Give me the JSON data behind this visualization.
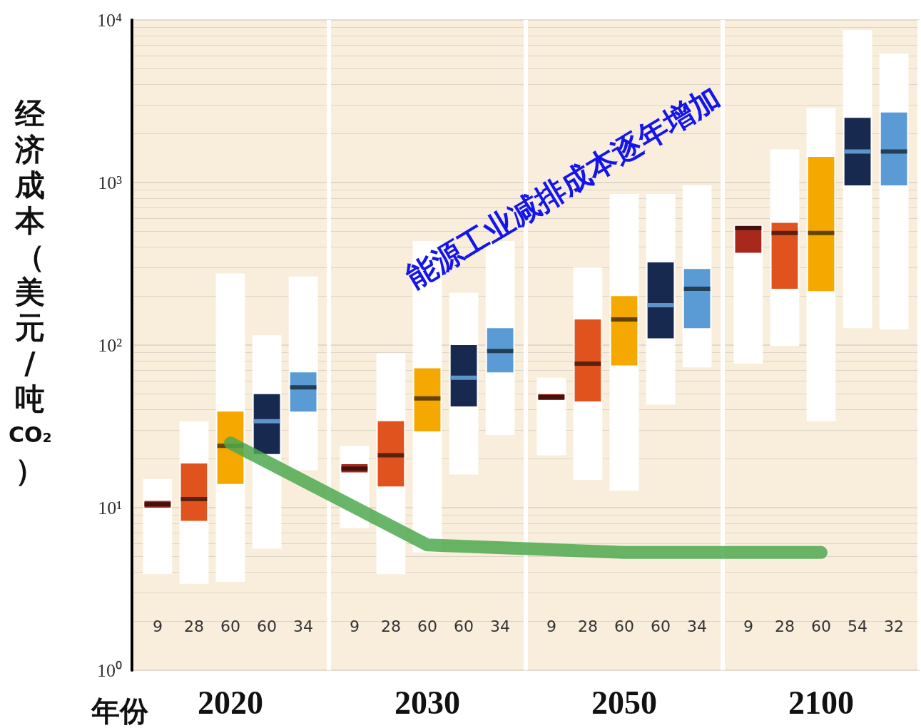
{
  "chart_data": {
    "type": "box",
    "xlabel": "年份",
    "ylabel": "经济成本（美元/吨CO₂）",
    "annotations": [
      "能源工业减排成本逐年增加"
    ],
    "categories": [
      "2020",
      "2030",
      "2050",
      "2100"
    ],
    "log": true,
    "grid": "y",
    "ylim": [
      1,
      10000
    ],
    "yticks": [
      {
        "value": 1,
        "label": "10⁰"
      },
      {
        "value": 10,
        "label": "10¹"
      },
      {
        "value": 100,
        "label": "10²"
      },
      {
        "value": 1000,
        "label": "10³"
      },
      {
        "value": 10000,
        "label": "10⁴"
      }
    ],
    "series": [
      {
        "color": "#a8281c",
        "value_labels": [
          "9",
          "9",
          "9",
          "9"
        ],
        "boxes": [
          {
            "low": 3.9,
            "q1": 10,
            "median": 10.5,
            "q3": 11,
            "high": 15
          },
          {
            "low": 7.5,
            "q1": 16.5,
            "median": 17.4,
            "q3": 18.5,
            "high": 24
          },
          {
            "low": 21,
            "q1": 46,
            "median": 48,
            "q3": 50,
            "high": 63
          },
          {
            "low": 77,
            "q1": 370,
            "median": 525,
            "q3": 540,
            "high": 550
          }
        ]
      },
      {
        "color": "#e0531e",
        "value_labels": [
          "28",
          "28",
          "28",
          "28"
        ],
        "boxes": [
          {
            "low": 3.4,
            "q1": 8.3,
            "median": 11.3,
            "q3": 18.7,
            "high": 34
          },
          {
            "low": 3.9,
            "q1": 13.5,
            "median": 21,
            "q3": 34,
            "high": 89
          },
          {
            "low": 14.8,
            "q1": 45,
            "median": 77,
            "q3": 144,
            "high": 300
          },
          {
            "low": 99,
            "q1": 222,
            "median": 490,
            "q3": 565,
            "high": 1600
          }
        ]
      },
      {
        "color": "#f5a900",
        "value_labels": [
          "60",
          "60",
          "60",
          "60"
        ],
        "boxes": [
          {
            "low": 3.5,
            "q1": 14,
            "median": 24,
            "q3": 39,
            "high": 276
          },
          {
            "low": 5.3,
            "q1": 29.5,
            "median": 47,
            "q3": 72,
            "high": 437
          },
          {
            "low": 12.7,
            "q1": 75,
            "median": 144,
            "q3": 200,
            "high": 850
          },
          {
            "low": 34,
            "q1": 215,
            "median": 490,
            "q3": 1440,
            "high": 2880
          }
        ]
      },
      {
        "color": "#17294f",
        "value_labels": [
          "60",
          "60",
          "60",
          "54"
        ],
        "boxes": [
          {
            "low": 5.6,
            "q1": 21.4,
            "median": 34,
            "q3": 50,
            "high": 115
          },
          {
            "low": 16,
            "q1": 42,
            "median": 63,
            "q3": 100,
            "high": 210
          },
          {
            "low": 43,
            "q1": 110,
            "median": 176,
            "q3": 323,
            "high": 850
          },
          {
            "low": 127,
            "q1": 960,
            "median": 1550,
            "q3": 2500,
            "high": 8700
          }
        ]
      },
      {
        "color": "#5b9bd5",
        "value_labels": [
          "34",
          "34",
          "34",
          "32"
        ],
        "boxes": [
          {
            "low": 17,
            "q1": 39,
            "median": 55,
            "q3": 68,
            "high": 264
          },
          {
            "low": 28,
            "q1": 68,
            "median": 92,
            "q3": 127,
            "high": 437
          },
          {
            "low": 73,
            "q1": 127,
            "median": 222,
            "q3": 294,
            "high": 960
          },
          {
            "low": 125,
            "q1": 960,
            "median": 1550,
            "q3": 2700,
            "high": 6200
          }
        ]
      },
      {
        "type": "line",
        "color": "#4fa84f",
        "marker": "none",
        "values": [
          25,
          5.9,
          5.3,
          5.3
        ]
      }
    ]
  }
}
